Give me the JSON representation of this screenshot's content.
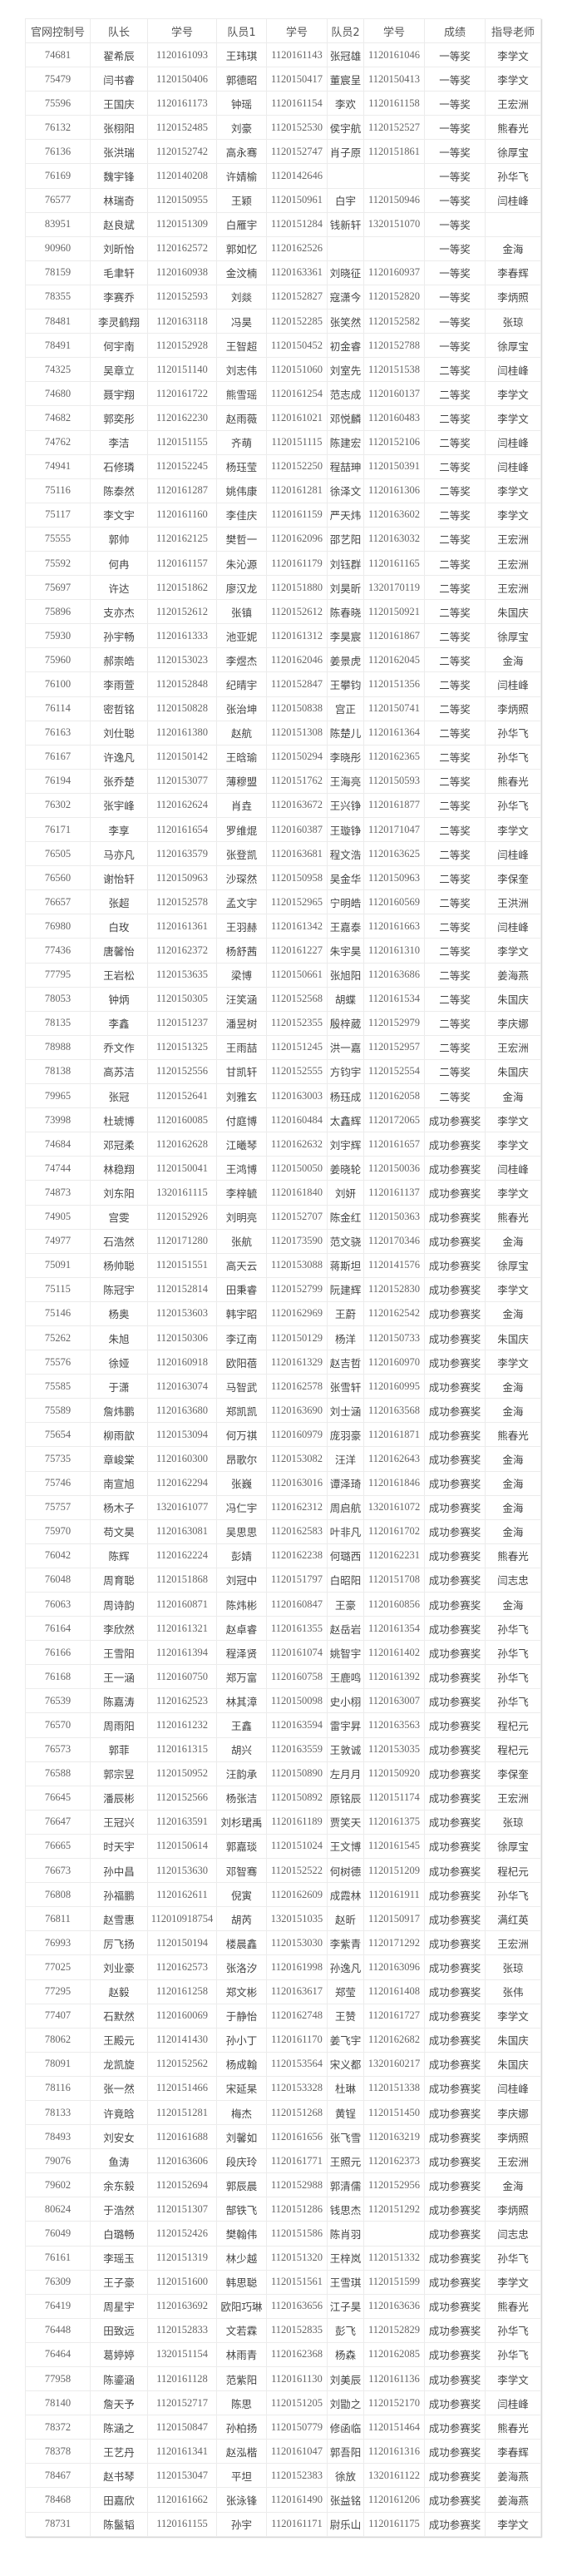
{
  "table": {
    "headers": [
      "官网控制号",
      "队长",
      "学号",
      "队员1",
      "学号",
      "队员2",
      "学号",
      "成绩",
      "指导老师"
    ],
    "rows": [
      [
        "74681",
        "翟希辰",
        "1120161093",
        "王玮琪",
        "1120161143",
        "张冠雄",
        "1120161046",
        "一等奖",
        "李学文"
      ],
      [
        "75479",
        "闫书睿",
        "1120150406",
        "郭德昭",
        "1120150417",
        "董宸呈",
        "1120150413",
        "一等奖",
        "李学文"
      ],
      [
        "75596",
        "王国庆",
        "1120161173",
        "钟瑶",
        "1120161154",
        "李欢",
        "1120161158",
        "一等奖",
        "王宏洲"
      ],
      [
        "76132",
        "张栩阳",
        "1120152485",
        "刘豪",
        "1120152530",
        "侯宇航",
        "1120152527",
        "一等奖",
        "熊春光"
      ],
      [
        "76136",
        "张洪瑞",
        "1120152742",
        "高永骞",
        "1120152747",
        "肖子原",
        "1120151861",
        "一等奖",
        "徐厚宝"
      ],
      [
        "76169",
        "魏宇锋",
        "1120140208",
        "许婧榆",
        "1120142646",
        "",
        "",
        "一等奖",
        "孙华飞"
      ],
      [
        "76577",
        "林瑞奇",
        "1120150955",
        "王颖",
        "1120150961",
        "白宇",
        "1120150946",
        "一等奖",
        "闫桂峰"
      ],
      [
        "83951",
        "赵良斌",
        "1120151309",
        "白雁宇",
        "1120151284",
        "钱新轩",
        "1320151070",
        "一等奖",
        ""
      ],
      [
        "90960",
        "刘昕怡",
        "1120162572",
        "郭如忆",
        "1120162526",
        "",
        "",
        "一等奖",
        "金海"
      ],
      [
        "78159",
        "毛聿轩",
        "1120160938",
        "金汶楠",
        "1120163361",
        "刘晓征",
        "1120160937",
        "一等奖",
        "李春辉"
      ],
      [
        "78355",
        "李赛乔",
        "1120152593",
        "刘燚",
        "1120152827",
        "寇潇今",
        "1120152820",
        "一等奖",
        "李炳照"
      ],
      [
        "78481",
        "李灵鹤翔",
        "1120163118",
        "冯昊",
        "1120152285",
        "张笑然",
        "1120152582",
        "一等奖",
        "张琼"
      ],
      [
        "78491",
        "何宇南",
        "1120152928",
        "王智超",
        "1120150452",
        "初金睿",
        "1120152788",
        "一等奖",
        "徐厚宝"
      ],
      [
        "74325",
        "吴章立",
        "1120151140",
        "刘志伟",
        "1120151060",
        "刘室先",
        "1120151538",
        "二等奖",
        "闫桂峰"
      ],
      [
        "74680",
        "聂宇翔",
        "1120161722",
        "熊雪瑶",
        "1120161254",
        "范志成",
        "1120160137",
        "二等奖",
        "李学文"
      ],
      [
        "74682",
        "郭奕彤",
        "1120162230",
        "赵雨薇",
        "1120161021",
        "邓悦麟",
        "1120160483",
        "二等奖",
        "李学文"
      ],
      [
        "74762",
        "李洁",
        "1120151155",
        "齐萌",
        "1120151115",
        "陈建宏",
        "1120152106",
        "二等奖",
        "闫桂峰"
      ],
      [
        "74941",
        "石修璘",
        "1120152245",
        "杨珏莹",
        "1120152250",
        "程喆珅",
        "1120150391",
        "二等奖",
        "闫桂峰"
      ],
      [
        "75116",
        "陈泰然",
        "1120161287",
        "姚伟康",
        "1120161281",
        "徐泽文",
        "1120161306",
        "二等奖",
        "李学文"
      ],
      [
        "75117",
        "李文宇",
        "1120161160",
        "李佳庆",
        "1120161159",
        "严天炜",
        "1120163602",
        "二等奖",
        "李学文"
      ],
      [
        "75555",
        "郭帅",
        "1120162125",
        "樊哲一",
        "1120162096",
        "邵艺阳",
        "1120163032",
        "二等奖",
        "王宏洲"
      ],
      [
        "75592",
        "何冉",
        "1120161157",
        "朱沁源",
        "1120161179",
        "刘钰群",
        "1120161165",
        "二等奖",
        "王宏洲"
      ],
      [
        "75697",
        "许达",
        "1120151862",
        "廖汉龙",
        "1120151880",
        "刘昊昕",
        "1320170119",
        "二等奖",
        "王宏洲"
      ],
      [
        "75896",
        "支亦杰",
        "1120152612",
        "张镇",
        "1120152612",
        "陈春晓",
        "1120150921",
        "二等奖",
        "朱国庆"
      ],
      [
        "75930",
        "孙宇畅",
        "1120161333",
        "池亚妮",
        "1120161312",
        "李昊宸",
        "1120161867",
        "二等奖",
        "徐厚宝"
      ],
      [
        "75960",
        "郝崇皓",
        "1120153023",
        "李煜杰",
        "1120162046",
        "姜景虎",
        "1120162045",
        "二等奖",
        "金海"
      ],
      [
        "76100",
        "李雨萱",
        "1120152848",
        "纪晴宇",
        "1120152847",
        "王攀钧",
        "1120151356",
        "二等奖",
        "闫桂峰"
      ],
      [
        "76114",
        "密哲铭",
        "1120150828",
        "张治坤",
        "1120150838",
        "宫正",
        "1120150741",
        "二等奖",
        "李炳照"
      ],
      [
        "76163",
        "刘仕聪",
        "1120161380",
        "赵航",
        "1120151308",
        "陈楚儿",
        "1120161364",
        "二等奖",
        "孙华飞"
      ],
      [
        "76167",
        "许逸凡",
        "1120150142",
        "王晗瑜",
        "1120150294",
        "李晓彤",
        "1120162365",
        "二等奖",
        "孙华飞"
      ],
      [
        "76194",
        "张乔楚",
        "1120153077",
        "薄穆盟",
        "1120151762",
        "王海亮",
        "1120150593",
        "二等奖",
        "熊春光"
      ],
      [
        "76302",
        "张宇峰",
        "1120162624",
        "肖垚",
        "1120163672",
        "王兴铮",
        "1120161877",
        "二等奖",
        "孙华飞"
      ],
      [
        "76171",
        "李享",
        "1120161654",
        "罗维焜",
        "1120160387",
        "王璇铮",
        "1120171047",
        "二等奖",
        "李学文"
      ],
      [
        "76505",
        "马亦凡",
        "1120163579",
        "张登凯",
        "1120163681",
        "程文浩",
        "1120163625",
        "二等奖",
        "闫桂峰"
      ],
      [
        "76560",
        "谢怡轩",
        "1120150963",
        "沙琛然",
        "1120150958",
        "吴金华",
        "1120150963",
        "二等奖",
        "李保奎"
      ],
      [
        "76657",
        "张超",
        "1120152578",
        "孟文宇",
        "1120152965",
        "宁明皓",
        "1120160569",
        "二等奖",
        "王洪洲"
      ],
      [
        "76980",
        "白玫",
        "1120161361",
        "王羽赫",
        "1120161342",
        "王嘉泰",
        "1120161663",
        "二等奖",
        "闫桂峰"
      ],
      [
        "77436",
        "唐馨怡",
        "1120162372",
        "杨舒茜",
        "1120161227",
        "朱宇昊",
        "1120161310",
        "二等奖",
        "李学文"
      ],
      [
        "77795",
        "王岩松",
        "1120153635",
        "梁博",
        "1120150661",
        "张旭阳",
        "1120163686",
        "二等奖",
        "姜海燕"
      ],
      [
        "78053",
        "钟炳",
        "1120150305",
        "汪笑涵",
        "1120152568",
        "胡蝶",
        "1120161534",
        "二等奖",
        "朱国庆"
      ],
      [
        "78135",
        "李鑫",
        "1120151237",
        "潘昱树",
        "1120152355",
        "殷梓葳",
        "1120152979",
        "二等奖",
        "李庆娜"
      ],
      [
        "78988",
        "乔文作",
        "1120151325",
        "王雨喆",
        "1120151245",
        "洪一嘉",
        "1120152957",
        "二等奖",
        "王宏洲"
      ],
      [
        "78138",
        "高苏洁",
        "1120152556",
        "甘凯轩",
        "1120152555",
        "方钧宇",
        "1120152554",
        "二等奖",
        "朱国庆"
      ],
      [
        "79965",
        "张冠",
        "1120152641",
        "刘雅玄",
        "1120163003",
        "杨珏成",
        "1120162058",
        "二等奖",
        "金海"
      ],
      [
        "73998",
        "杜琥博",
        "1120160085",
        "付庭博",
        "1120160484",
        "太鑫辉",
        "1120172065",
        "成功参赛奖",
        "李学文"
      ],
      [
        "74684",
        "邓冠柔",
        "1120162628",
        "江曦琴",
        "1120162632",
        "刘宇辉",
        "1120161657",
        "成功参赛奖",
        "李学文"
      ],
      [
        "74744",
        "林稳翔",
        "1120150041",
        "王鸿博",
        "1120150050",
        "姜晓轮",
        "1120150036",
        "成功参赛奖",
        "闫桂峰"
      ],
      [
        "74873",
        "刘东阳",
        "1320161115",
        "李梓毓",
        "1120161840",
        "刘妍",
        "1120161137",
        "成功参赛奖",
        "李学文"
      ],
      [
        "74905",
        "宫雯",
        "1120152926",
        "刘明亮",
        "1120152707",
        "陈金红",
        "1120150363",
        "成功参赛奖",
        "熊春光"
      ],
      [
        "74977",
        "石浩然",
        "1120171280",
        "张航",
        "1120173590",
        "范文骁",
        "1120170346",
        "成功参赛奖",
        "金海"
      ],
      [
        "75091",
        "杨帅聪",
        "1120151551",
        "高天云",
        "1120153088",
        "蒋斯坦",
        "1120141576",
        "成功参赛奖",
        "徐厚宝"
      ],
      [
        "75115",
        "陈冠宇",
        "1120152814",
        "田秉睿",
        "1120152799",
        "阮建辉",
        "1120152830",
        "成功参赛奖",
        "李学文"
      ],
      [
        "75146",
        "杨奥",
        "1120153603",
        "韩宇昭",
        "1120162969",
        "王蔚",
        "1120162542",
        "成功参赛奖",
        "金海"
      ],
      [
        "75262",
        "朱旭",
        "1120150306",
        "李辽南",
        "1120150129",
        "杨洋",
        "1120150733",
        "成功参赛奖",
        "朱国庆"
      ],
      [
        "75576",
        "徐娅",
        "1120160918",
        "欧阳蓓",
        "1120161329",
        "赵吉哲",
        "1120160970",
        "成功参赛奖",
        "李学文"
      ],
      [
        "75585",
        "于潇",
        "1120163074",
        "马智武",
        "1120162578",
        "张雪轩",
        "1120160995",
        "成功参赛奖",
        "金海"
      ],
      [
        "75589",
        "詹炜鹏",
        "1120163680",
        "郑凯凯",
        "1120163690",
        "刘士涵",
        "1120163568",
        "成功参赛奖",
        "金海"
      ],
      [
        "75654",
        "柳雨歆",
        "1120153094",
        "何万祺",
        "1120160979",
        "庞羽豪",
        "1120161871",
        "成功参赛奖",
        "熊春光"
      ],
      [
        "75735",
        "章峻棠",
        "1120160300",
        "昂歌尔",
        "1120153082",
        "汪洋",
        "1120162643",
        "成功参赛奖",
        "金海"
      ],
      [
        "75746",
        "南宣旭",
        "1120162294",
        "张巍",
        "1120163016",
        "谭泽琦",
        "1120161846",
        "成功参赛奖",
        "金海"
      ],
      [
        "75757",
        "杨木子",
        "1320161077",
        "冯仁宇",
        "1120162312",
        "周启航",
        "1320161072",
        "成功参赛奖",
        "金海"
      ],
      [
        "75970",
        "苟文昊",
        "1120163081",
        "吴思思",
        "1120162583",
        "叶非凡",
        "1120161702",
        "成功参赛奖",
        "金海"
      ],
      [
        "76042",
        "陈辉",
        "1120162224",
        "彭婧",
        "1120162238",
        "何璐西",
        "1120162231",
        "成功参赛奖",
        "熊春光"
      ],
      [
        "76048",
        "周育聪",
        "1120151868",
        "刘冠中",
        "1120151797",
        "白昭阳",
        "1120151708",
        "成功参赛奖",
        "闫志忠"
      ],
      [
        "76063",
        "周诗韵",
        "1120160871",
        "陈炜彬",
        "1120160847",
        "王豪",
        "1120160856",
        "成功参赛奖",
        "金海"
      ],
      [
        "76164",
        "李欣然",
        "1120161321",
        "赵卓睿",
        "1120161355",
        "赵岳岩",
        "1120161354",
        "成功参赛奖",
        "孙华飞"
      ],
      [
        "76166",
        "王雪阳",
        "1120161394",
        "程泽贤",
        "1120161074",
        "姚智宇",
        "1120161402",
        "成功参赛奖",
        "孙华飞"
      ],
      [
        "76168",
        "王一涵",
        "1120160750",
        "郑万富",
        "1120160758",
        "王鹿鸣",
        "1120161392",
        "成功参赛奖",
        "孙华飞"
      ],
      [
        "76539",
        "陈嘉涛",
        "1120162523",
        "林其漳",
        "1120150098",
        "史小栩",
        "1120163007",
        "成功参赛奖",
        "孙华飞"
      ],
      [
        "76570",
        "周雨阳",
        "1120161232",
        "王鑫",
        "1120163594",
        "雷宇昇",
        "1120163563",
        "成功参赛奖",
        "程杞元"
      ],
      [
        "76573",
        "郭菲",
        "1120161315",
        "胡兴",
        "1120163559",
        "王敦诚",
        "1120153035",
        "成功参赛奖",
        "程杞元"
      ],
      [
        "76588",
        "郭宗昱",
        "1120150952",
        "汪韵承",
        "1120150890",
        "左月月",
        "1120150920",
        "成功参赛奖",
        "李保奎"
      ],
      [
        "76645",
        "潘辰彬",
        "1120152566",
        "杨张洁",
        "1120150892",
        "原铭辰",
        "1120151174",
        "成功参赛奖",
        "王宏洲"
      ],
      [
        "76647",
        "王冠兴",
        "1120163591",
        "刘杉珺禹",
        "1120161189",
        "贾笑天",
        "1120161375",
        "成功参赛奖",
        "张琼"
      ],
      [
        "76665",
        "时天宇",
        "1120150614",
        "郭嘉琰",
        "1120151024",
        "王文博",
        "1120161545",
        "成功参赛奖",
        "徐厚宝"
      ],
      [
        "76673",
        "孙中昌",
        "1120153630",
        "邓智骞",
        "1120152522",
        "何树德",
        "1120151209",
        "成功参赛奖",
        "程杞元"
      ],
      [
        "76808",
        "孙福鹏",
        "1120162611",
        "倪寅",
        "1120162609",
        "成霞林",
        "1120161911",
        "成功参赛奖",
        "孙华飞"
      ],
      [
        "76811",
        "赵雪惠",
        "112010918754",
        "胡芮",
        "1320151035",
        "赵昕",
        "1120150917",
        "成功参赛奖",
        "满红英"
      ],
      [
        "76993",
        "厉飞扬",
        "1120150194",
        "楼晨鑫",
        "1120153030",
        "李紫青",
        "1120171292",
        "成功参赛奖",
        "王宏洲"
      ],
      [
        "77025",
        "刘业豪",
        "1120162573",
        "张洛汐",
        "1120161998",
        "孙逸凡",
        "1120163096",
        "成功参赛奖",
        "张琼"
      ],
      [
        "77295",
        "赵毅",
        "1120161258",
        "郑文彬",
        "1120163617",
        "郑莹",
        "1120161408",
        "成功参赛奖",
        "张伟"
      ],
      [
        "77407",
        "石默然",
        "1120160069",
        "于静怡",
        "1120162748",
        "王赞",
        "1120161727",
        "成功参赛奖",
        "李学文"
      ],
      [
        "78062",
        "王殿元",
        "1120141430",
        "孙小丁",
        "1120161170",
        "姜飞宇",
        "1120162682",
        "成功参赛奖",
        "朱国庆"
      ],
      [
        "78091",
        "龙凯旋",
        "1120152562",
        "杨成翰",
        "1120153564",
        "宋义都",
        "1320160217",
        "成功参赛奖",
        "朱国庆"
      ],
      [
        "78116",
        "张一然",
        "1120151466",
        "宋延杲",
        "1120153328",
        "杜琳",
        "1120151338",
        "成功参赛奖",
        "闫桂峰"
      ],
      [
        "78133",
        "许竟晗",
        "1120151281",
        "梅杰",
        "1120151268",
        "黄锃",
        "1120151450",
        "成功参赛奖",
        "李庆娜"
      ],
      [
        "78493",
        "刘安女",
        "1120161688",
        "刘馨如",
        "1120161656",
        "张飞雪",
        "1120163219",
        "成功参赛奖",
        "李炳照"
      ],
      [
        "79076",
        "鱼涛",
        "1120163606",
        "段庆玲",
        "1120161771",
        "王照元",
        "1120162373",
        "成功参赛奖",
        "王宏洲"
      ],
      [
        "79602",
        "余东毅",
        "1120152694",
        "郭辰晨",
        "1120152988",
        "郭清儒",
        "1120152956",
        "成功参赛奖",
        "金海"
      ],
      [
        "80624",
        "于浩然",
        "1120151307",
        "郜铁飞",
        "1120151286",
        "钱思杰",
        "1120151292",
        "成功参赛奖",
        "李炳照"
      ],
      [
        "76049",
        "白璐畅",
        "1120152426",
        "樊翰伟",
        "1120151586",
        "陈肖羽",
        "",
        "成功参赛奖",
        "闫志忠"
      ],
      [
        "76161",
        "李瑶玉",
        "1120151319",
        "林少越",
        "1120151320",
        "王梓岚",
        "1120151332",
        "成功参赛奖",
        "孙华飞"
      ],
      [
        "76309",
        "王子豪",
        "1120151600",
        "韩思聪",
        "1120151561",
        "王雪琪",
        "1120151599",
        "成功参赛奖",
        "李学文"
      ],
      [
        "76419",
        "周星宇",
        "1120163692",
        "欧阳巧琳",
        "1120163656",
        "江子昊",
        "1120163636",
        "成功参赛奖",
        "熊春光"
      ],
      [
        "76448",
        "田致远",
        "1120152833",
        "文若霖",
        "1120152835",
        "彭飞",
        "1120152829",
        "成功参赛奖",
        "孙华飞"
      ],
      [
        "76464",
        "葛婷婷",
        "1320151154",
        "林雨青",
        "1120162368",
        "杨森",
        "1120162085",
        "成功参赛奖",
        "孙华飞"
      ],
      [
        "77958",
        "陈鎏涵",
        "1120161128",
        "范紫阳",
        "1120161130",
        "刘美辰",
        "1120161136",
        "成功参赛奖",
        "李学文"
      ],
      [
        "78140",
        "詹天予",
        "1120152717",
        "陈思",
        "1120151205",
        "刘勖之",
        "1120152170",
        "成功参赛奖",
        "闫桂峰"
      ],
      [
        "78372",
        "陈涵之",
        "1120150847",
        "孙柏扬",
        "1120150779",
        "修函临",
        "1120151464",
        "成功参赛奖",
        "熊春光"
      ],
      [
        "78378",
        "王艺丹",
        "1120161341",
        "赵泓楷",
        "1120161047",
        "郭吾阳",
        "1120161316",
        "成功参赛奖",
        "李春辉"
      ],
      [
        "78467",
        "赵书琴",
        "1120153047",
        "平坦",
        "1120152383",
        "徐放",
        "1320161122",
        "成功参赛奖",
        "姜海燕"
      ],
      [
        "78468",
        "田嘉欣",
        "1120161662",
        "张泳锋",
        "1120161490",
        "张益铭",
        "1120161206",
        "成功参赛奖",
        "姜海燕"
      ],
      [
        "78731",
        "陈鬣韬",
        "1120161155",
        "孙宇",
        "1120161171",
        "尉乐山",
        "1120161175",
        "成功参赛奖",
        "李学文"
      ]
    ]
  }
}
